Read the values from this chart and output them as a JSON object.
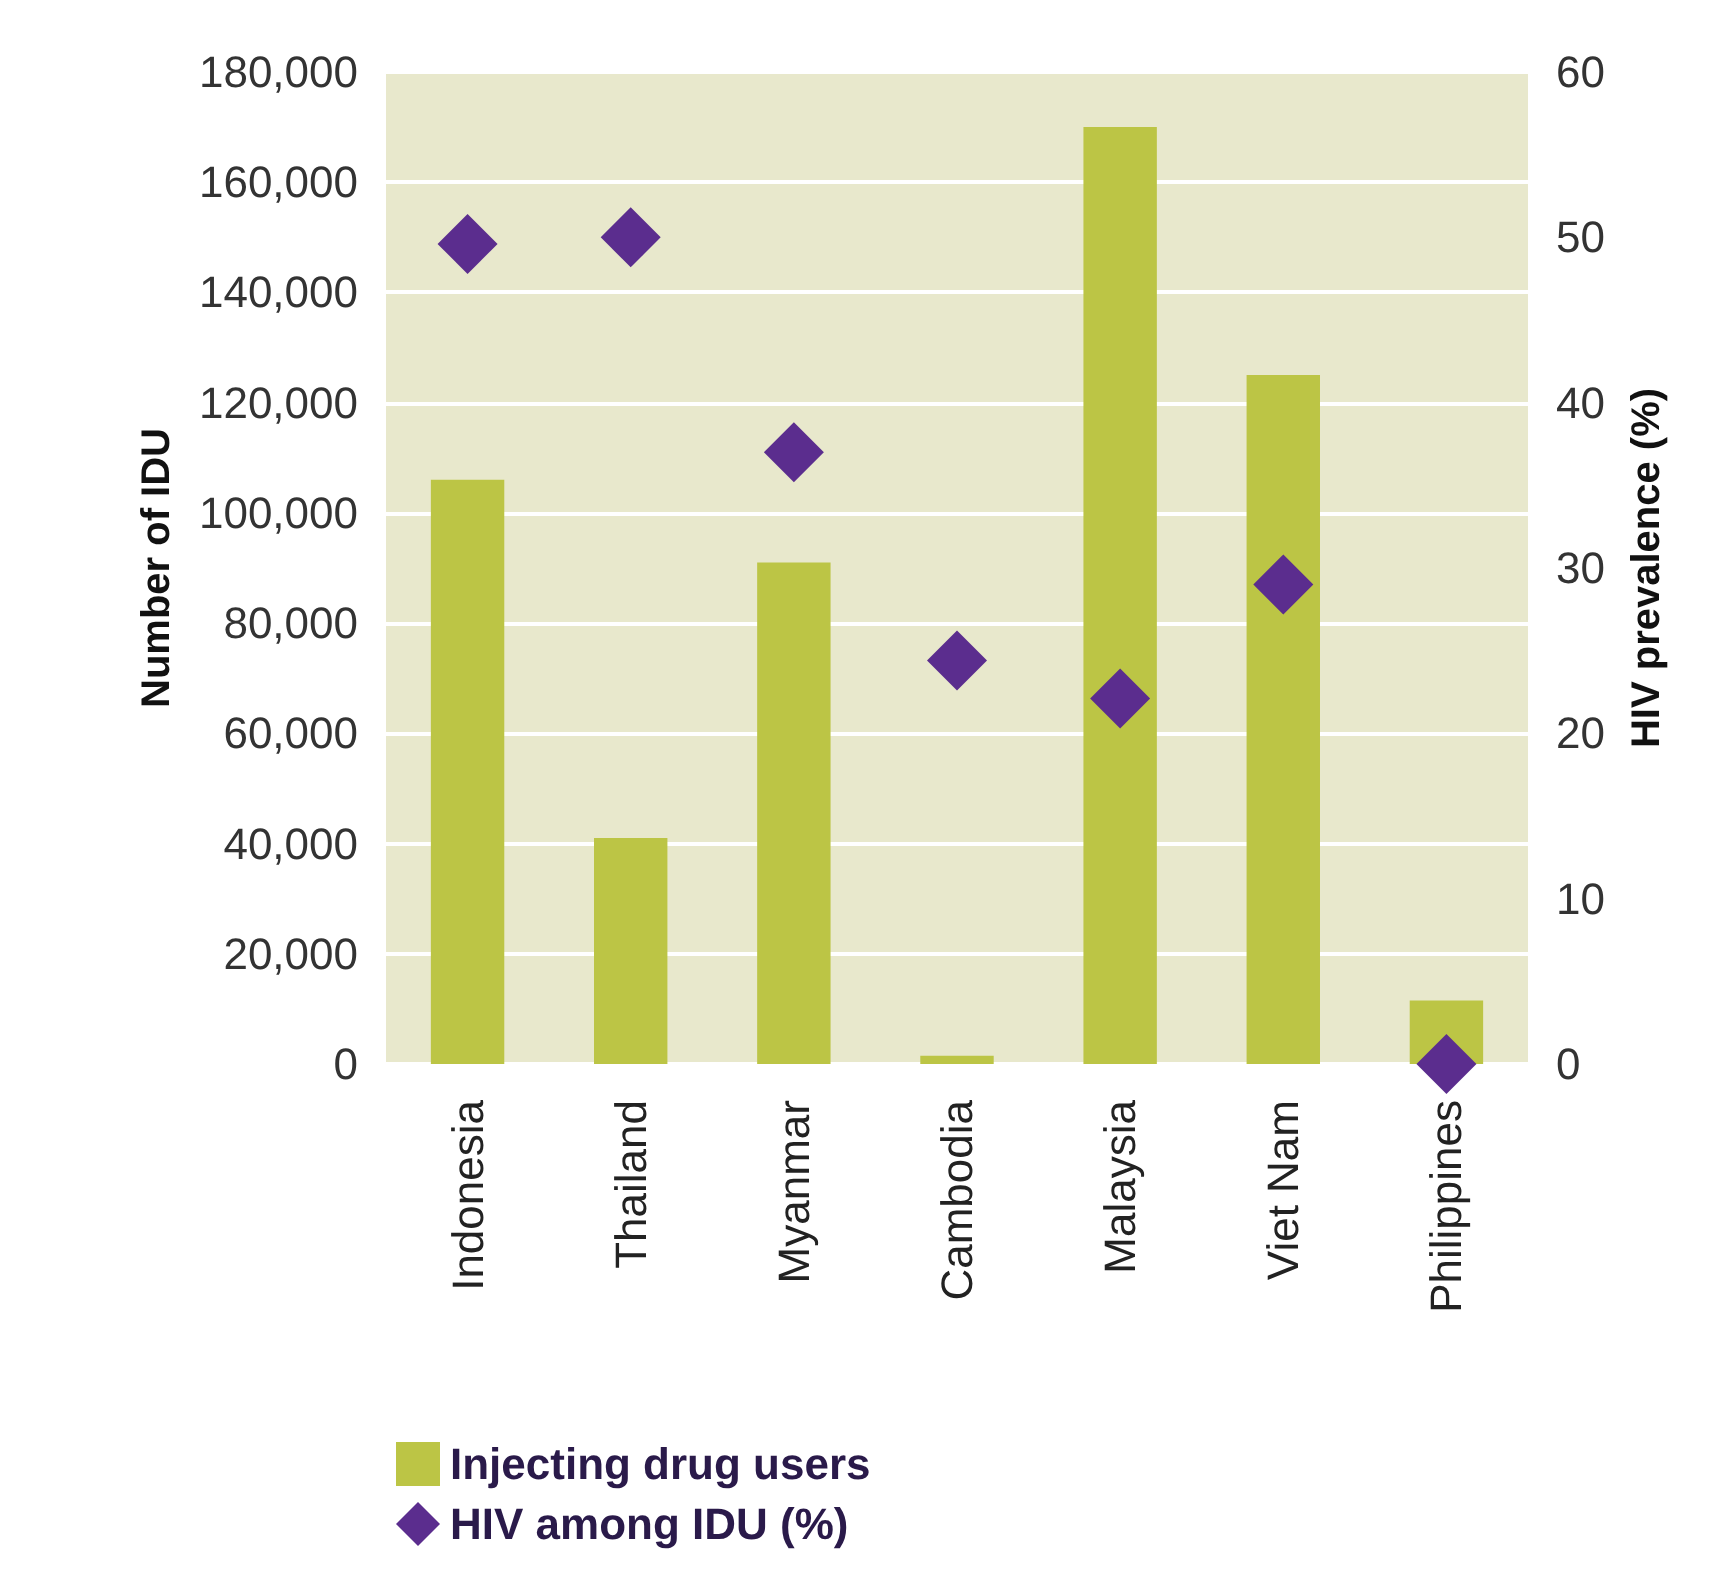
{
  "chart_data": {
    "type": "bar",
    "categories": [
      "Indonesia",
      "Thailand",
      "Myanmar",
      "Cambodia",
      "Malaysia",
      "Viet Nam",
      "Philippines"
    ],
    "ylabel": "Number of IDU",
    "y2label": "HIV prevalence (%)",
    "series": [
      {
        "name": "Injecting drug users",
        "color": "#bcc545",
        "values": [
          106000,
          41000,
          91000,
          1500,
          170000,
          125000,
          11500
        ]
      },
      {
        "name": "HIV among IDU (%)",
        "type": "scatter",
        "axis": "y2",
        "color": "#5b2d8e",
        "marker": "diamond",
        "values": [
          49.6,
          50,
          37,
          24.4,
          22.1,
          29,
          0
        ]
      }
    ],
    "ylim": [
      0,
      180000
    ],
    "yticks": [
      0,
      {
        "value": 20000,
        "label": "20,000"
      },
      {
        "value": 40000,
        "label": "40,000"
      },
      {
        "value": 60000,
        "label": "60,000"
      },
      {
        "value": 80000,
        "label": "80,000"
      },
      {
        "value": 100000,
        "label": "100,000"
      },
      {
        "value": 120000,
        "label": "120,000"
      },
      {
        "value": 140000,
        "label": "140,000"
      },
      {
        "value": 160000,
        "label": "160,000"
      },
      {
        "value": 180000,
        "label": "180,000"
      }
    ],
    "y2lim": [
      0,
      60
    ],
    "y2ticks": [
      0,
      10,
      20,
      30,
      40,
      50,
      60
    ],
    "grid": "y",
    "legend": "bottom left"
  }
}
